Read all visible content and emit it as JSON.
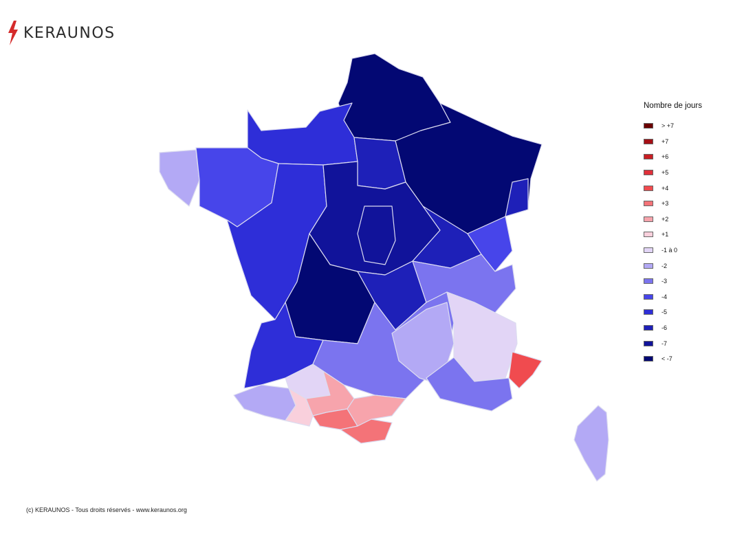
{
  "brand": {
    "name": "KERAUNOS",
    "accent": "#d52b2b",
    "text_color": "#2b2b2b"
  },
  "legend": {
    "title": "Nombre de jours",
    "items": [
      {
        "label": "> +7",
        "color": "#6b0000"
      },
      {
        "label": "+7",
        "color": "#a50f15"
      },
      {
        "label": "+6",
        "color": "#c81e23"
      },
      {
        "label": "+5",
        "color": "#e0303a"
      },
      {
        "label": "+4",
        "color": "#f04b4f"
      },
      {
        "label": "+3",
        "color": "#f47378"
      },
      {
        "label": "+2",
        "color": "#f7a4ac"
      },
      {
        "label": "+1",
        "color": "#f9d0dc"
      },
      {
        "label": "-1 à 0",
        "color": "#e2d5f6"
      },
      {
        "label": "-2",
        "color": "#b3a9f5"
      },
      {
        "label": "-3",
        "color": "#7b74ef"
      },
      {
        "label": "-4",
        "color": "#4745ea"
      },
      {
        "label": "-5",
        "color": "#2e2ed8"
      },
      {
        "label": "-6",
        "color": "#1e20b8"
      },
      {
        "label": "-7",
        "color": "#11139a"
      },
      {
        "label": "< -7",
        "color": "#030873"
      }
    ]
  },
  "footer": {
    "text": "(c) KERAUNOS - Tous droits réservés - www.keraunos.org"
  },
  "map": {
    "country": "France",
    "regions": [
      {
        "name": "north",
        "value": "< -7"
      },
      {
        "name": "northeast",
        "value": "< -7"
      },
      {
        "name": "normandy",
        "value": "-5"
      },
      {
        "name": "brittany-west",
        "value": "-2"
      },
      {
        "name": "brittany",
        "value": "-4"
      },
      {
        "name": "west",
        "value": "-5"
      },
      {
        "name": "centre",
        "value": "-7"
      },
      {
        "name": "limousin",
        "value": "< -7"
      },
      {
        "name": "burgundy",
        "value": "-7"
      },
      {
        "name": "alsace",
        "value": "-6"
      },
      {
        "name": "alps-north",
        "value": "-4"
      },
      {
        "name": "aquitaine",
        "value": "-5"
      },
      {
        "name": "massif-central",
        "value": "-3"
      },
      {
        "name": "rhone-valley",
        "value": "-2"
      },
      {
        "name": "alps-south",
        "value": "-1 à 0"
      },
      {
        "name": "alpes-maritimes",
        "value": "+4"
      },
      {
        "name": "provence",
        "value": "-3"
      },
      {
        "name": "pays-basque",
        "value": "-2"
      },
      {
        "name": "gers",
        "value": "-1 à 0"
      },
      {
        "name": "hautes-pyrenees",
        "value": "+1"
      },
      {
        "name": "toulouse",
        "value": "+2"
      },
      {
        "name": "ariege",
        "value": "+3"
      },
      {
        "name": "aude-herault",
        "value": "+2"
      },
      {
        "name": "pyrenees-orientales",
        "value": "+3"
      },
      {
        "name": "corsica",
        "value": "-2"
      }
    ]
  }
}
